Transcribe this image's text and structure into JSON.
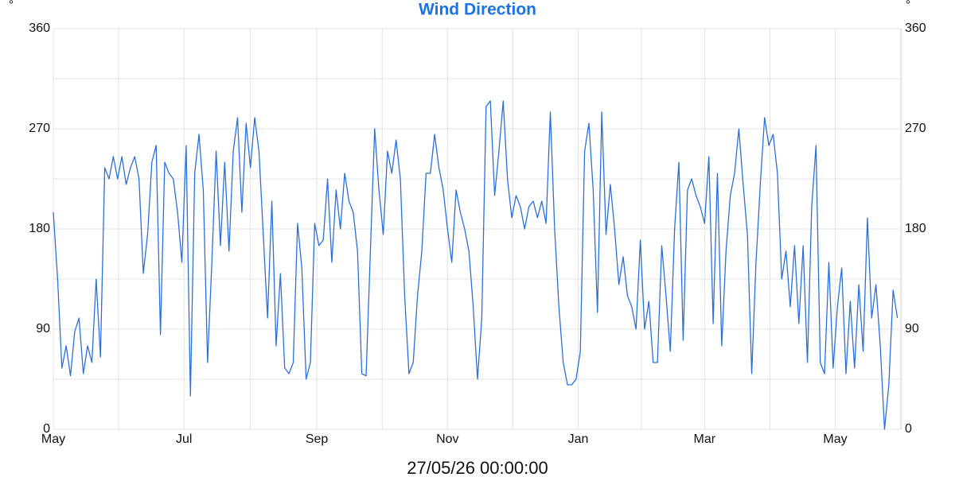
{
  "chart_data": {
    "type": "line",
    "title": "Wind Direction",
    "ylabel": "°",
    "y2label": "°",
    "annotation": "27/05/26 00:00:00",
    "x": [
      0,
      2,
      4,
      6,
      8,
      10,
      12,
      14,
      16,
      18,
      20,
      22,
      24,
      26,
      28,
      30,
      32,
      34,
      36,
      38,
      40,
      42,
      44,
      46,
      48,
      50,
      52,
      54,
      56,
      58,
      60,
      62,
      64,
      66,
      68,
      70,
      72,
      74,
      76,
      78,
      80,
      82,
      84,
      86,
      88,
      90,
      92,
      94,
      96,
      98,
      100,
      102,
      104,
      106,
      108,
      110,
      112,
      114,
      116,
      118,
      120,
      122,
      124,
      126,
      128,
      130,
      132,
      134,
      136,
      138,
      140,
      142,
      144,
      146,
      148,
      150,
      152,
      154,
      156,
      158,
      160,
      162,
      164,
      166,
      168,
      170,
      172,
      174,
      176,
      178,
      180,
      182,
      184,
      186,
      188,
      190,
      192,
      194,
      196,
      198,
      200,
      202,
      204,
      206,
      208,
      210,
      212,
      214,
      216,
      218,
      220,
      222,
      224,
      226,
      228,
      230,
      232,
      234,
      236,
      238,
      240,
      242,
      244,
      246,
      248,
      250,
      252,
      254,
      256,
      258,
      260,
      262,
      264,
      266,
      268,
      270,
      272,
      274,
      276,
      278,
      280,
      282,
      284,
      286,
      288,
      290,
      292,
      294,
      296,
      298,
      300,
      302,
      304,
      306,
      308,
      310,
      312,
      314,
      316,
      318,
      320,
      322,
      324,
      326,
      328,
      330,
      332,
      334,
      336,
      338,
      340,
      342,
      344,
      346,
      348,
      350,
      352,
      354,
      356,
      358,
      360,
      362,
      364,
      366,
      368,
      370,
      372,
      374,
      376,
      378,
      380,
      382,
      384,
      386,
      388,
      390,
      392,
      394
    ],
    "series": [
      {
        "name": "Wind Direction",
        "color": "#2a6fdb",
        "values": [
          195,
          135,
          55,
          75,
          48,
          88,
          100,
          50,
          75,
          60,
          135,
          65,
          235,
          225,
          245,
          225,
          245,
          220,
          235,
          245,
          225,
          140,
          175,
          240,
          255,
          85,
          240,
          230,
          225,
          195,
          150,
          255,
          30,
          230,
          265,
          215,
          60,
          150,
          250,
          165,
          240,
          160,
          250,
          280,
          195,
          275,
          235,
          280,
          250,
          175,
          100,
          205,
          75,
          140,
          55,
          50,
          60,
          185,
          145,
          45,
          60,
          185,
          165,
          170,
          225,
          150,
          215,
          180,
          230,
          205,
          195,
          160,
          50,
          48,
          160,
          270,
          215,
          175,
          250,
          230,
          260,
          225,
          120,
          50,
          60,
          120,
          160,
          230,
          230,
          265,
          235,
          215,
          180,
          150,
          215,
          195,
          180,
          160,
          110,
          45,
          100,
          290,
          295,
          210,
          250,
          295,
          225,
          190,
          210,
          200,
          180,
          200,
          205,
          190,
          205,
          185,
          285,
          180,
          110,
          60,
          40,
          40,
          45,
          70,
          250,
          275,
          215,
          105,
          285,
          175,
          220,
          180,
          130,
          155,
          120,
          110,
          90,
          170,
          90,
          115,
          60,
          60,
          165,
          120,
          70,
          180,
          240,
          80,
          215,
          225,
          210,
          200,
          185,
          245,
          95,
          230,
          75,
          160,
          210,
          230,
          270,
          220,
          175,
          50,
          150,
          220,
          280,
          255,
          265,
          230,
          135,
          160,
          110,
          165,
          95,
          165,
          60,
          200,
          255,
          60,
          50,
          150,
          55,
          110,
          145,
          50,
          115,
          55,
          130,
          70,
          190,
          100,
          130,
          75,
          0,
          40,
          125,
          100
        ]
      }
    ],
    "xlim": [
      0,
      396
    ],
    "xticks": [
      {
        "value": 0,
        "label": "May"
      },
      {
        "value": 61,
        "label": "Jul"
      },
      {
        "value": 123,
        "label": "Sep"
      },
      {
        "value": 184,
        "label": "Nov"
      },
      {
        "value": 245,
        "label": "Jan"
      },
      {
        "value": 304,
        "label": "Mar"
      },
      {
        "value": 365,
        "label": "May"
      }
    ],
    "ylim": [
      0,
      360
    ],
    "yticks": [
      0,
      90,
      180,
      270,
      360
    ],
    "y2lim": [
      0,
      360
    ],
    "y2ticks": [
      0,
      90,
      180,
      270,
      360
    ],
    "grid": true
  }
}
